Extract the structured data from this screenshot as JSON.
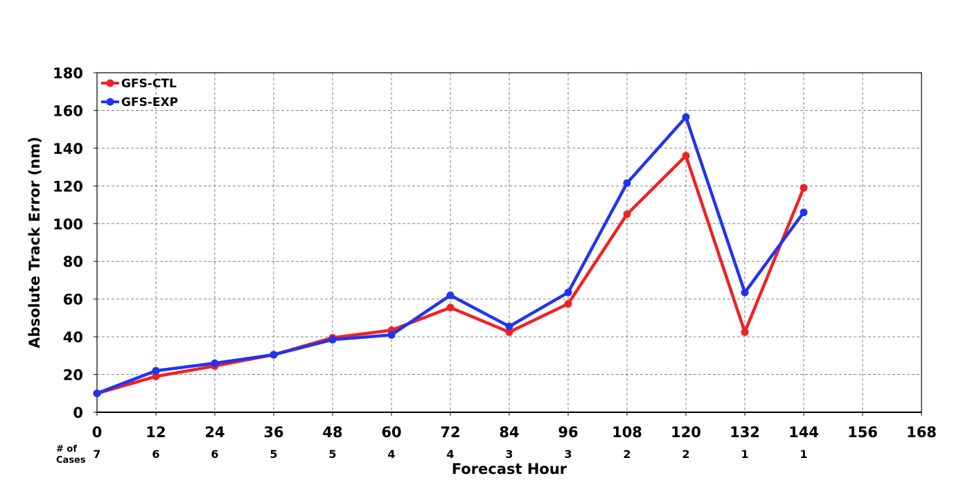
{
  "chart_data": {
    "type": "line",
    "xlabel": "Forecast Hour",
    "ylabel": "Absolute Track Error (nm)",
    "xlim": [
      0,
      168
    ],
    "ylim": [
      0,
      180
    ],
    "x_ticks": [
      0,
      12,
      24,
      36,
      48,
      60,
      72,
      84,
      96,
      108,
      120,
      132,
      144,
      156,
      168
    ],
    "y_ticks": [
      0,
      20,
      40,
      60,
      80,
      100,
      120,
      140,
      160,
      180
    ],
    "grid": true,
    "legend_position": "top-left",
    "x": [
      0,
      12,
      24,
      36,
      48,
      60,
      72,
      84,
      96,
      108,
      120,
      132,
      144
    ],
    "series": [
      {
        "name": "GFS-CTL",
        "color": "#ee2222",
        "values": [
          10,
          19,
          24.5,
          30.5,
          39.5,
          43.5,
          55.5,
          42.5,
          57.5,
          105,
          136,
          42.5,
          119
        ]
      },
      {
        "name": "GFS-EXP",
        "color": "#2233ee",
        "values": [
          10,
          22,
          26,
          30.5,
          38.5,
          41,
          62,
          45.5,
          63.5,
          121.5,
          156.5,
          63.5,
          106
        ]
      }
    ],
    "cases_heading": [
      "# of",
      "Cases"
    ],
    "cases": [
      7,
      6,
      6,
      5,
      5,
      4,
      4,
      3,
      3,
      2,
      2,
      1,
      1
    ]
  }
}
